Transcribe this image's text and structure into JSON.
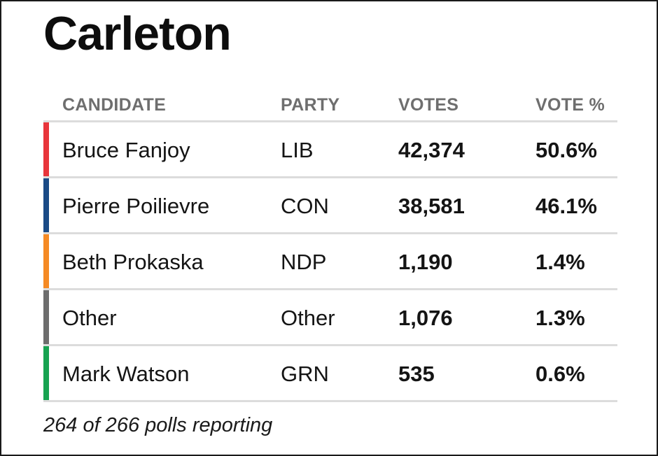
{
  "riding": {
    "title": "Carleton"
  },
  "table": {
    "headers": {
      "candidate": "CANDIDATE",
      "party": "PARTY",
      "votes": "VOTES",
      "vote_pct": "VOTE %"
    },
    "rows": [
      {
        "candidate": "Bruce Fanjoy",
        "party": "LIB",
        "votes": "42,374",
        "vote_pct": "50.6%",
        "color": "#e8353b"
      },
      {
        "candidate": "Pierre Poilievre",
        "party": "CON",
        "votes": "38,581",
        "vote_pct": "46.1%",
        "color": "#1a4a86"
      },
      {
        "candidate": "Beth Prokaska",
        "party": "NDP",
        "votes": "1,190",
        "vote_pct": "1.4%",
        "color": "#f58a24"
      },
      {
        "candidate": "Other",
        "party": "Other",
        "votes": "1,076",
        "vote_pct": "1.3%",
        "color": "#6d6d6d"
      },
      {
        "candidate": "Mark Watson",
        "party": "GRN",
        "votes": "535",
        "vote_pct": "0.6%",
        "color": "#17a351"
      }
    ]
  },
  "footer": {
    "reporting": "264 of 266 polls reporting"
  }
}
